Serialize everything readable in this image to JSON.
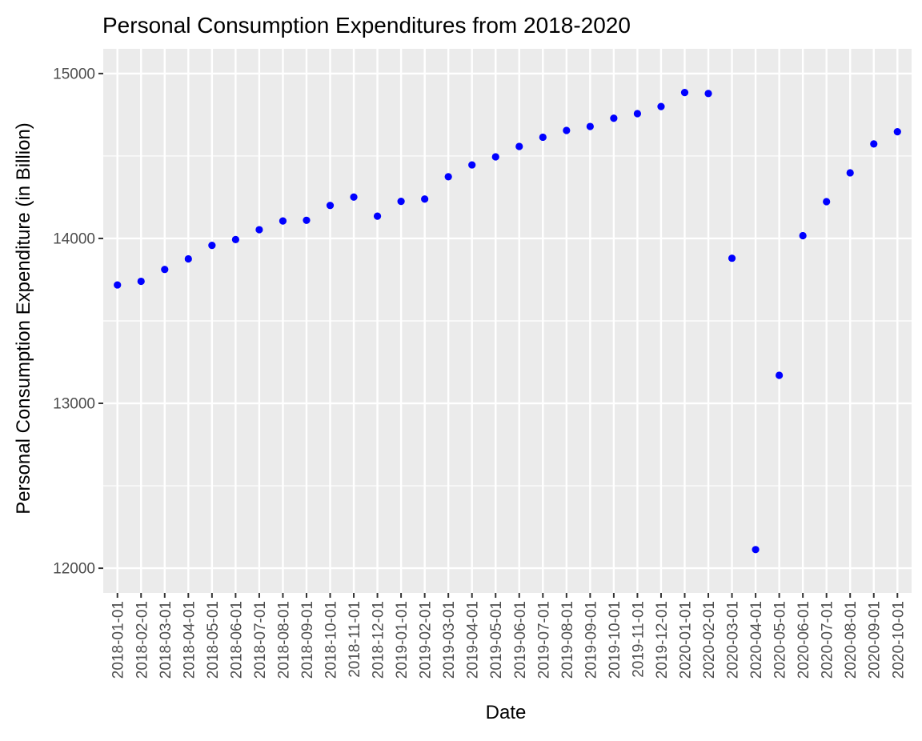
{
  "chart_data": {
    "type": "scatter",
    "title": "Personal Consumption Expenditures from 2018-2020",
    "xlabel": "Date",
    "ylabel": "Personal Consumption Expenditure (in Billion)",
    "ylim": [
      12000,
      15000
    ],
    "y_ticks": [
      12000,
      13000,
      14000,
      15000
    ],
    "grid": true,
    "point_color": "#0000ff",
    "panel_color": "#ebebeb",
    "x": [
      "2018-01-01",
      "2018-02-01",
      "2018-03-01",
      "2018-04-01",
      "2018-05-01",
      "2018-06-01",
      "2018-07-01",
      "2018-08-01",
      "2018-09-01",
      "2018-10-01",
      "2018-11-01",
      "2018-12-01",
      "2019-01-01",
      "2019-02-01",
      "2019-03-01",
      "2019-04-01",
      "2019-05-01",
      "2019-06-01",
      "2019-07-01",
      "2019-08-01",
      "2019-09-01",
      "2019-10-01",
      "2019-11-01",
      "2019-12-01",
      "2020-01-01",
      "2020-02-01",
      "2020-03-01",
      "2020-04-01",
      "2020-05-01",
      "2020-06-01",
      "2020-07-01",
      "2020-08-01",
      "2020-09-01",
      "2020-10-01"
    ],
    "y": [
      13718,
      13740,
      13812,
      13876,
      13958,
      13993,
      14053,
      14106,
      14110,
      14200,
      14251,
      14135,
      14225,
      14239,
      14374,
      14446,
      14495,
      14558,
      14614,
      14655,
      14679,
      14729,
      14757,
      14800,
      14885,
      14879,
      13880,
      12113,
      13170,
      14017,
      14223,
      14398,
      14573,
      14647
    ]
  }
}
